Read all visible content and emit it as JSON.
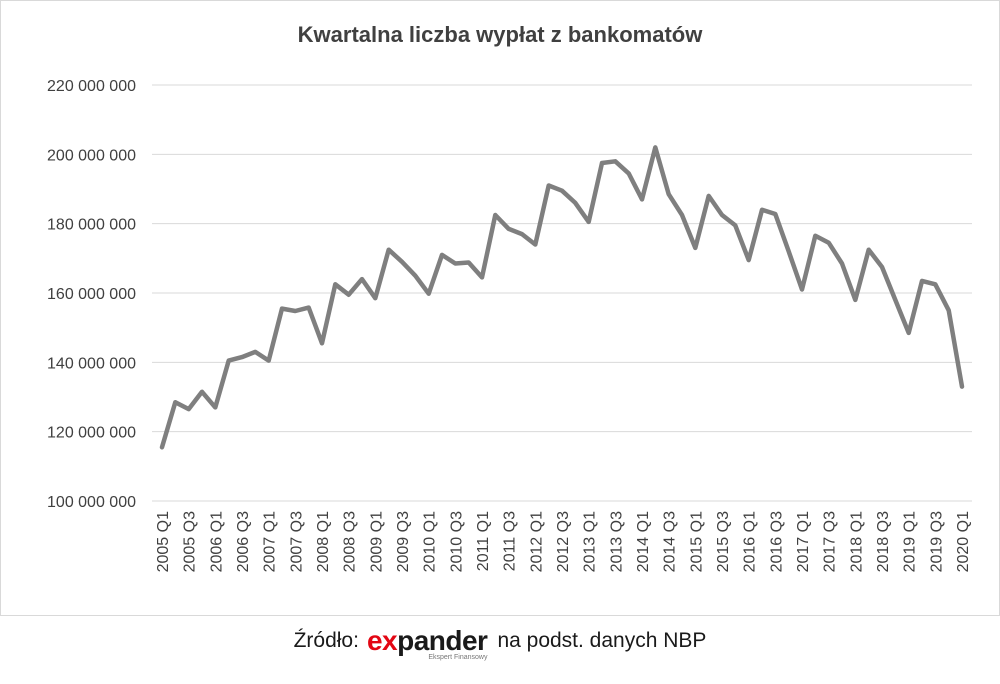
{
  "source": {
    "prefix": "Źródło:",
    "logo_accent": "e",
    "logo_mark": "x",
    "logo_rest": "pander",
    "logo_tagline": "Ekspert Finansowy",
    "suffix": "na podst. danych NBP"
  },
  "colors": {
    "line": "#7f7f7f",
    "grid": "#d9d9d9",
    "text": "#404040",
    "logo_red": "#e30613"
  },
  "chart_data": {
    "type": "line",
    "title": "Kwartalna liczba wypłat z bankomatów",
    "xlabel": "",
    "ylabel": "",
    "ylim": [
      100000000,
      220000000
    ],
    "yticks": [
      100000000,
      120000000,
      140000000,
      160000000,
      180000000,
      200000000,
      220000000
    ],
    "ytick_labels": [
      "100 000 000",
      "120 000 000",
      "140 000 000",
      "160 000 000",
      "180 000 000",
      "200 000 000",
      "220 000 000"
    ],
    "grid": true,
    "legend": "none",
    "x": [
      "2005 Q1",
      "2005 Q2",
      "2005 Q3",
      "2005 Q4",
      "2006 Q1",
      "2006 Q2",
      "2006 Q3",
      "2006 Q4",
      "2007 Q1",
      "2007 Q2",
      "2007 Q3",
      "2007 Q4",
      "2008 Q1",
      "2008 Q2",
      "2008 Q3",
      "2008 Q4",
      "2009 Q1",
      "2009 Q2",
      "2009 Q3",
      "2009 Q4",
      "2010 Q1",
      "2010 Q2",
      "2010 Q3",
      "2010 Q4",
      "2011 Q1",
      "2011 Q2",
      "2011 Q3",
      "2011 Q4",
      "2012 Q1",
      "2012 Q2",
      "2012 Q3",
      "2012 Q4",
      "2013 Q1",
      "2013 Q2",
      "2013 Q3",
      "2013 Q4",
      "2014 Q1",
      "2014 Q2",
      "2014 Q3",
      "2014 Q4",
      "2015 Q1",
      "2015 Q2",
      "2015 Q3",
      "2015 Q4",
      "2016 Q1",
      "2016 Q2",
      "2016 Q3",
      "2016 Q4",
      "2017 Q1",
      "2017 Q2",
      "2017 Q3",
      "2017 Q4",
      "2018 Q1",
      "2018 Q2",
      "2018 Q3",
      "2018 Q4",
      "2019 Q1",
      "2019 Q2",
      "2019 Q3",
      "2019 Q4",
      "2020 Q1"
    ],
    "x_labels": [
      "2005 Q1",
      "2005 Q3",
      "2006 Q1",
      "2006 Q3",
      "2007 Q1",
      "2007 Q3",
      "2008 Q1",
      "2008 Q3",
      "2009 Q1",
      "2009 Q3",
      "2010 Q1",
      "2010 Q3",
      "2011 Q1",
      "2011 Q3",
      "2012 Q1",
      "2012 Q3",
      "2013 Q1",
      "2013 Q3",
      "2014 Q1",
      "2014 Q3",
      "2015 Q1",
      "2015 Q3",
      "2016 Q1",
      "2016 Q3",
      "2017 Q1",
      "2017 Q3",
      "2018 Q1",
      "2018 Q3",
      "2019 Q1",
      "2019 Q3",
      "2020 Q1"
    ],
    "series": [
      {
        "values": [
          115500000,
          128500000,
          126500000,
          131500000,
          127000000,
          140500000,
          141500000,
          143000000,
          140500000,
          155500000,
          154800000,
          155800000,
          145500000,
          162500000,
          159500000,
          164000000,
          158500000,
          172500000,
          169000000,
          165000000,
          159800000,
          171000000,
          168500000,
          168800000,
          164500000,
          182500000,
          178500000,
          177000000,
          174000000,
          191000000,
          189500000,
          186000000,
          180500000,
          197500000,
          198000000,
          194500000,
          187000000,
          202000000,
          188500000,
          182500000,
          173000000,
          188000000,
          182500000,
          179500000,
          169500000,
          184000000,
          182800000,
          172000000,
          161000000,
          176500000,
          174500000,
          168500000,
          158000000,
          172500000,
          167500000,
          158000000,
          148500000,
          163500000,
          162500000,
          155000000,
          133000000
        ]
      }
    ]
  }
}
